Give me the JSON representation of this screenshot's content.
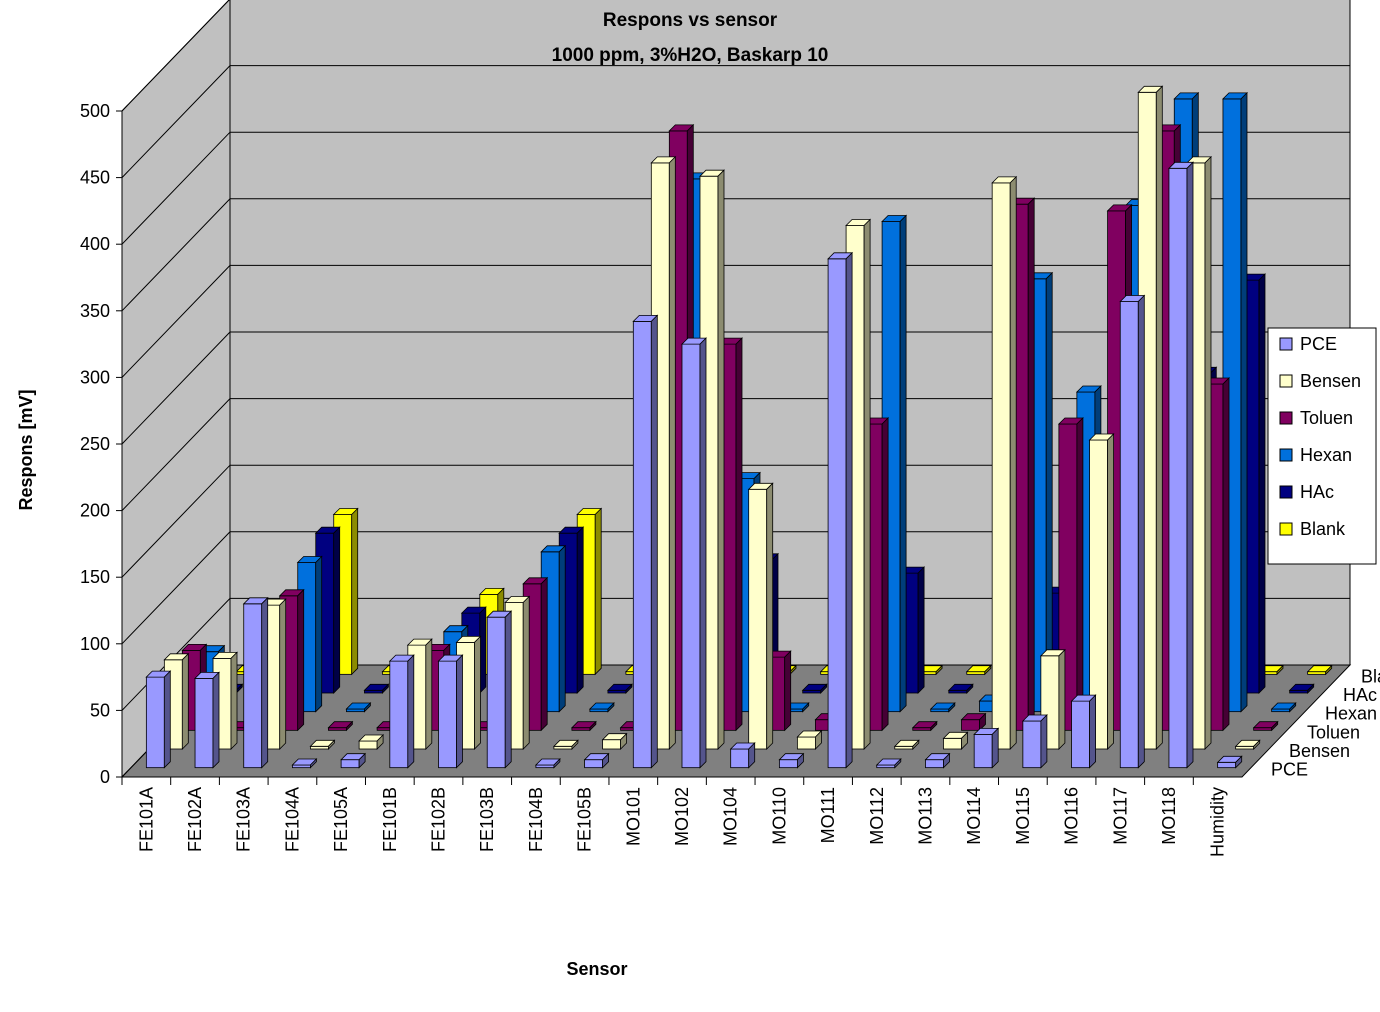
{
  "chart_data": {
    "type": "bar",
    "subtype": "3d-clustered",
    "title": "Respons vs sensor",
    "subtitle": "1000 ppm, 3%H2O, Baskarp 10",
    "xlabel": "Sensor",
    "ylabel": "Respons [mV]",
    "ylim": [
      0,
      500
    ],
    "yticks": [
      0,
      50,
      100,
      150,
      200,
      250,
      300,
      350,
      400,
      450,
      500
    ],
    "grid": true,
    "legend_position": "right",
    "categories": [
      "FE101A",
      "FE102A",
      "FE103A",
      "FE104A",
      "FE105A",
      "FE101B",
      "FE102B",
      "FE103B",
      "FE104B",
      "FE105B",
      "MO101",
      "MO102",
      "MO104",
      "MO110",
      "MO111",
      "MO112",
      "MO113",
      "MO114",
      "MO115",
      "MO116",
      "MO117",
      "MO118",
      "Humidity"
    ],
    "series": [
      {
        "name": "PCE",
        "color": "#9999ff",
        "values": [
          68,
          67,
          123,
          2,
          6,
          80,
          80,
          113,
          2,
          6,
          335,
          318,
          14,
          6,
          382,
          2,
          6,
          25,
          35,
          50,
          350,
          450,
          4
        ]
      },
      {
        "name": "Bensen",
        "color": "#ffffcc",
        "values": [
          67,
          68,
          108,
          2,
          6,
          78,
          80,
          110,
          2,
          7,
          440,
          430,
          195,
          9,
          393,
          2,
          8,
          425,
          70,
          232,
          493,
          440,
          2
        ]
      },
      {
        "name": "Toluen",
        "color": "#800060",
        "values": [
          60,
          2,
          101,
          2,
          2,
          60,
          2,
          110,
          2,
          2,
          450,
          290,
          55,
          8,
          230,
          2,
          8,
          395,
          230,
          390,
          450,
          260,
          2
        ]
      },
      {
        "name": "Hexan",
        "color": "#0070dd",
        "values": [
          45,
          2,
          112,
          2,
          2,
          60,
          2,
          120,
          2,
          2,
          400,
          175,
          2,
          2,
          368,
          2,
          8,
          325,
          240,
          380,
          460,
          460,
          2
        ]
      },
      {
        "name": "HAc",
        "color": "#000080",
        "values": [
          2,
          2,
          120,
          2,
          2,
          60,
          2,
          120,
          2,
          2,
          2,
          100,
          2,
          2,
          90,
          2,
          2,
          75,
          2,
          2,
          240,
          310,
          2
        ]
      },
      {
        "name": "Blank",
        "color": "#ffff00",
        "values": [
          2,
          2,
          120,
          2,
          2,
          60,
          2,
          120,
          2,
          2,
          2,
          2,
          2,
          2,
          2,
          2,
          2,
          2,
          2,
          2,
          2,
          2,
          2
        ]
      }
    ]
  },
  "colors": {
    "wall": "#c0c0c0",
    "floor": "#808080",
    "gridline": "#000000",
    "background": "#ffffff"
  }
}
